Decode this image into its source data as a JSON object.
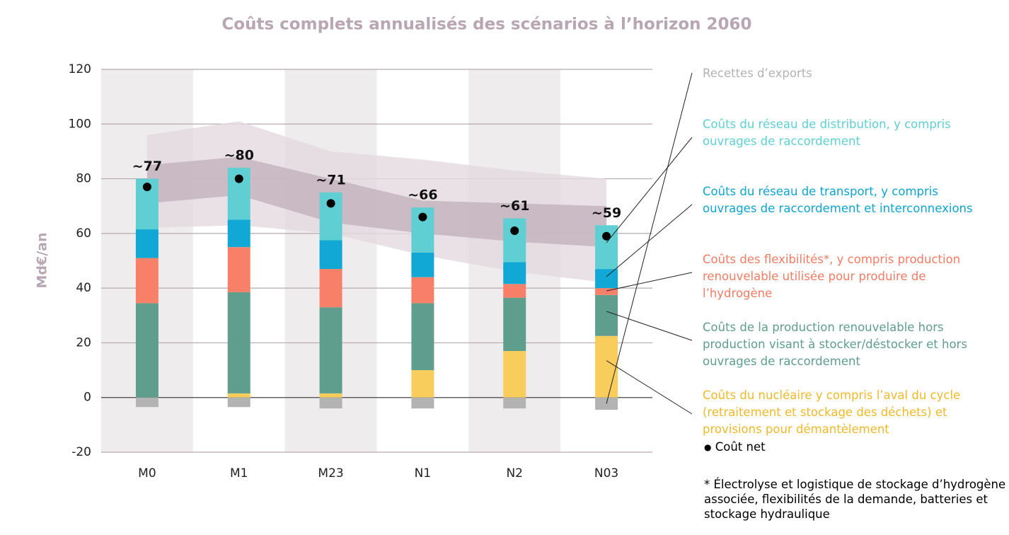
{
  "chart_data": {
    "type": "bar",
    "title": "Coûts complets annualisés des scénarios à l’horizon 2060",
    "y_label": "Md€/an",
    "categories": [
      "M0",
      "M1",
      "M23",
      "N1",
      "N2",
      "N03"
    ],
    "series": [
      {
        "name": "Coûts du nucléaire y compris l’aval du cycle (retraitement et stockage des déchets) et provisions pour démantèlement",
        "color": "#f9cd5b",
        "text_color": "#f0b92a",
        "values": [
          0,
          1.5,
          1.5,
          10,
          17,
          22.5
        ]
      },
      {
        "name": "Coûts de la production renouvelable hors production visant à stocker/déstocker et hors ouvrages de raccordement",
        "color": "#5f9e8d",
        "text_color": "#5f9e8d",
        "values": [
          34.5,
          37,
          31.5,
          24.5,
          19.5,
          15
        ]
      },
      {
        "name": "Coûts des flexibilités*, y compris production renouvelable utilisée pour produire de l’hydrogène",
        "color": "#f98068",
        "text_color": "#f47c62",
        "values": [
          16.5,
          16.5,
          14,
          9.5,
          5,
          2.5
        ]
      },
      {
        "name": "Coûts du réseau de transport, y compris ouvrages de raccordement et interconnexions",
        "color": "#11a8d6",
        "text_color": "#0ea5d2",
        "values": [
          10.5,
          10,
          10.5,
          9,
          8,
          7
        ]
      },
      {
        "name": "Coûts du réseau de distribution, y compris ouvrages de raccordement",
        "color": "#5fcfd3",
        "text_color": "#5fcfd3",
        "values": [
          18.5,
          19,
          17.5,
          16.5,
          16,
          16
        ]
      },
      {
        "name": "Recettes d’exports",
        "color": "#b3b3b3",
        "text_color": "#b3b3b3",
        "values": [
          -3.5,
          -3.5,
          -4,
          -4,
          -4,
          -4.5
        ]
      }
    ],
    "net": {
      "name": "Coût net",
      "color": "#000000",
      "values": [
        77,
        80,
        71,
        66,
        61,
        59
      ],
      "value_labels": [
        "~77",
        "~80",
        "~71",
        "~66",
        "~61",
        "~59"
      ]
    },
    "bands": [
      {
        "color": "#e3d9df",
        "low": [
          62,
          63,
          60,
          52,
          46,
          42
        ],
        "high": [
          96,
          101,
          90,
          87,
          83,
          80
        ]
      },
      {
        "color": "#c2b2bb",
        "low": [
          71,
          74,
          64,
          60,
          57,
          55
        ],
        "high": [
          85,
          88,
          80,
          72,
          71,
          70
        ]
      }
    ],
    "footnote": "* Électrolyse et logistique de stockage d’hydrogène associée, flexibilités de la demande, batteries et stockage hydraulique",
    "ylim": [
      -20,
      120
    ],
    "yticks": [
      -20,
      0,
      20,
      40,
      60,
      80,
      100,
      120
    ],
    "grid": true
  }
}
